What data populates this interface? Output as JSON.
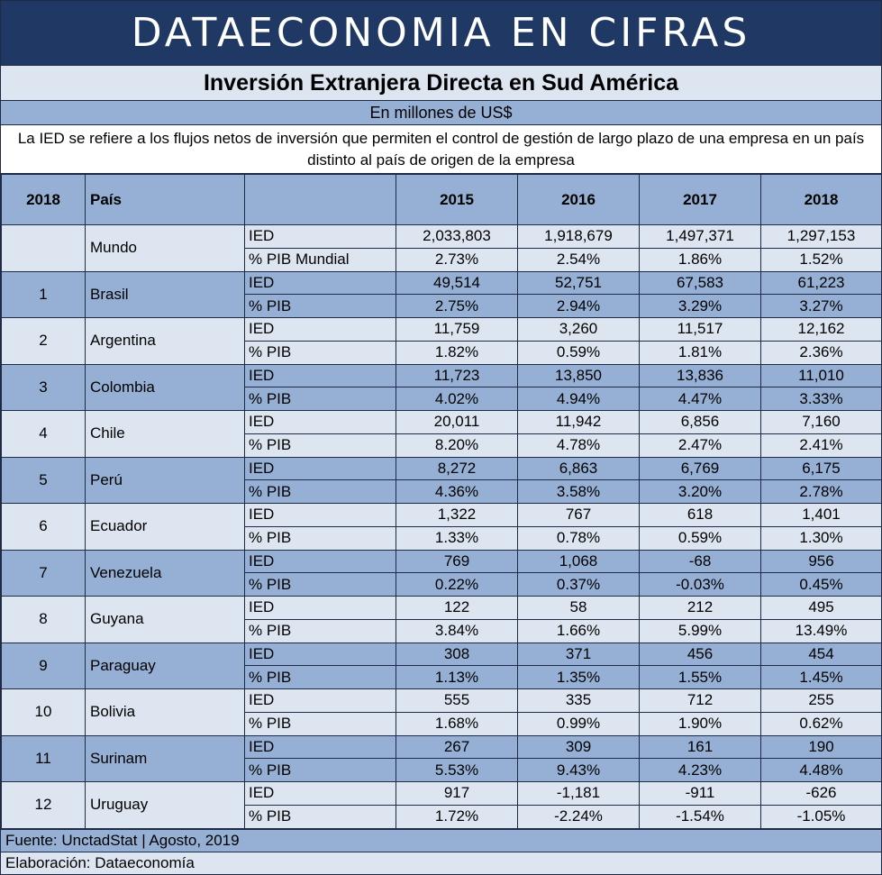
{
  "banner": "DATAECONOMIA EN CIFRAS",
  "title": "Inversión Extranjera Directa en Sud América",
  "subtitle": "En millones de US$",
  "description": "La IED se refiere a los flujos netos de inversión que permiten el control de gestión de largo plazo de una empresa en un país distinto al país de origen de la empresa",
  "table": {
    "headers": {
      "rank": "2018",
      "country": "País",
      "metric": "",
      "years": [
        "2015",
        "2016",
        "2017",
        "2018"
      ]
    },
    "rows": [
      {
        "rank": "",
        "country": "Mundo",
        "metric1": "IED",
        "values1": [
          "2,033,803",
          "1,918,679",
          "1,497,371",
          "1,297,153"
        ],
        "metric2": "% PIB Mundial",
        "values2": [
          "2.73%",
          "2.54%",
          "1.86%",
          "1.52%"
        ]
      },
      {
        "rank": "1",
        "country": "Brasil",
        "metric1": "IED",
        "values1": [
          "49,514",
          "52,751",
          "67,583",
          "61,223"
        ],
        "metric2": "% PIB",
        "values2": [
          "2.75%",
          "2.94%",
          "3.29%",
          "3.27%"
        ]
      },
      {
        "rank": "2",
        "country": "Argentina",
        "metric1": "IED",
        "values1": [
          "11,759",
          "3,260",
          "11,517",
          "12,162"
        ],
        "metric2": "% PIB",
        "values2": [
          "1.82%",
          "0.59%",
          "1.81%",
          "2.36%"
        ]
      },
      {
        "rank": "3",
        "country": "Colombia",
        "metric1": "IED",
        "values1": [
          "11,723",
          "13,850",
          "13,836",
          "11,010"
        ],
        "metric2": "% PIB",
        "values2": [
          "4.02%",
          "4.94%",
          "4.47%",
          "3.33%"
        ]
      },
      {
        "rank": "4",
        "country": "Chile",
        "metric1": "IED",
        "values1": [
          "20,011",
          "11,942",
          "6,856",
          "7,160"
        ],
        "metric2": "% PIB",
        "values2": [
          "8.20%",
          "4.78%",
          "2.47%",
          "2.41%"
        ]
      },
      {
        "rank": "5",
        "country": "Perú",
        "metric1": "IED",
        "values1": [
          "8,272",
          "6,863",
          "6,769",
          "6,175"
        ],
        "metric2": "% PIB",
        "values2": [
          "4.36%",
          "3.58%",
          "3.20%",
          "2.78%"
        ]
      },
      {
        "rank": "6",
        "country": "Ecuador",
        "metric1": "IED",
        "values1": [
          "1,322",
          "767",
          "618",
          "1,401"
        ],
        "metric2": "% PIB",
        "values2": [
          "1.33%",
          "0.78%",
          "0.59%",
          "1.30%"
        ]
      },
      {
        "rank": "7",
        "country": "Venezuela",
        "metric1": "IED",
        "values1": [
          "769",
          "1,068",
          "-68",
          "956"
        ],
        "metric2": "% PIB",
        "values2": [
          "0.22%",
          "0.37%",
          "-0.03%",
          "0.45%"
        ]
      },
      {
        "rank": "8",
        "country": "Guyana",
        "metric1": "IED",
        "values1": [
          "122",
          "58",
          "212",
          "495"
        ],
        "metric2": "% PIB",
        "values2": [
          "3.84%",
          "1.66%",
          "5.99%",
          "13.49%"
        ]
      },
      {
        "rank": "9",
        "country": "Paraguay",
        "metric1": "IED",
        "values1": [
          "308",
          "371",
          "456",
          "454"
        ],
        "metric2": "% PIB",
        "values2": [
          "1.13%",
          "1.35%",
          "1.55%",
          "1.45%"
        ]
      },
      {
        "rank": "10",
        "country": "Bolivia",
        "metric1": "IED",
        "values1": [
          "555",
          "335",
          "712",
          "255"
        ],
        "metric2": "% PIB",
        "values2": [
          "1.68%",
          "0.99%",
          "1.90%",
          "0.62%"
        ]
      },
      {
        "rank": "11",
        "country": "Surinam",
        "metric1": "IED",
        "values1": [
          "267",
          "309",
          "161",
          "190"
        ],
        "metric2": "% PIB",
        "values2": [
          "5.53%",
          "9.43%",
          "4.23%",
          "4.48%"
        ]
      },
      {
        "rank": "12",
        "country": "Uruguay",
        "metric1": "IED",
        "values1": [
          "917",
          "-1,181",
          "-911",
          "-626"
        ],
        "metric2": "% PIB",
        "values2": [
          "1.72%",
          "-2.24%",
          "-1.54%",
          "-1.05%"
        ]
      }
    ]
  },
  "footer": {
    "source": "Fuente: UnctadStat | Agosto, 2019",
    "credit": "Elaboración: Dataeconomía"
  },
  "colors": {
    "banner": "#1f3864",
    "light": "#dde6f0",
    "dark": "#95b0d4"
  }
}
